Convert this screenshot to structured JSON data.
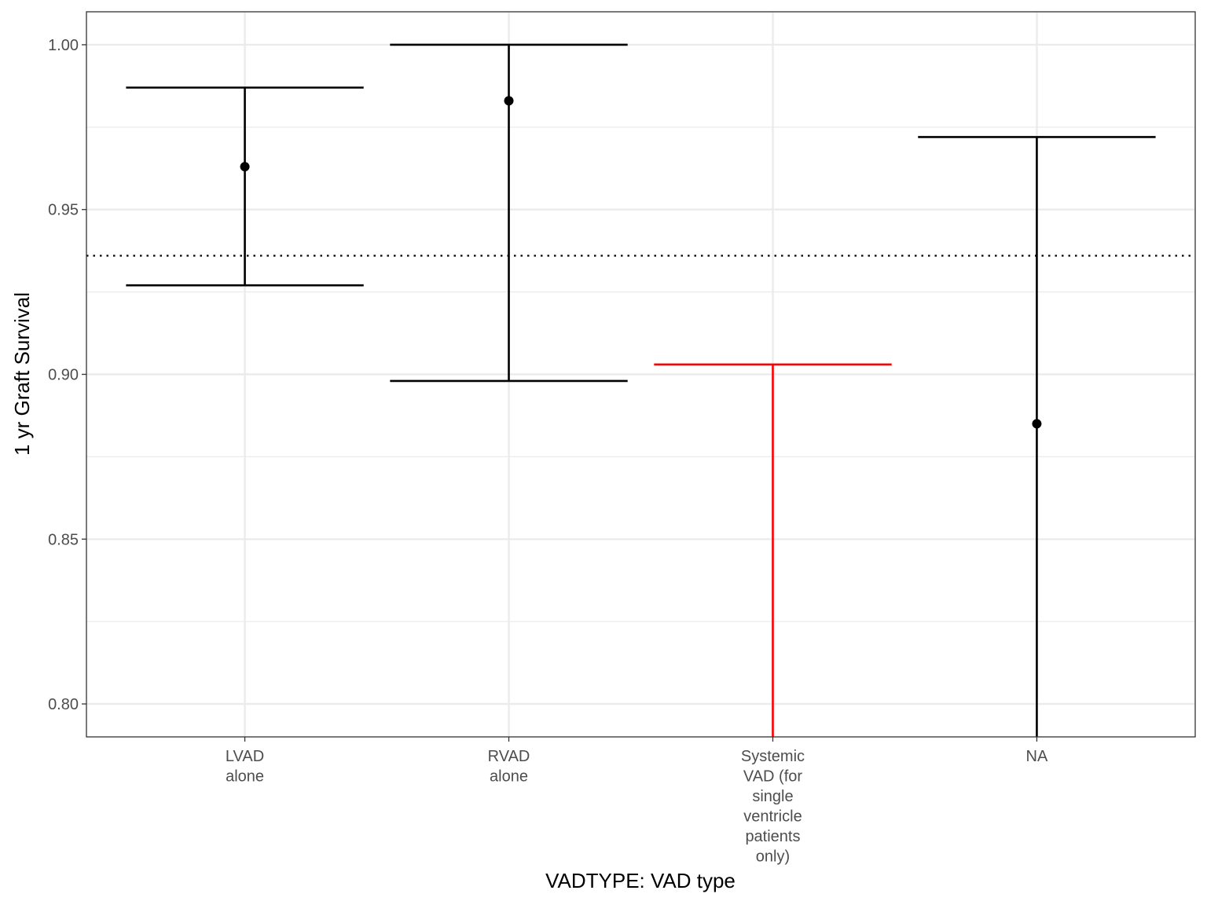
{
  "chart_data": {
    "type": "errorbar",
    "xlabel": "VADTYPE: VAD type",
    "ylabel": "1 yr Graft Survival",
    "ylim": [
      0.79,
      1.01
    ],
    "y_ticks": [
      "0.80",
      "0.85",
      "0.90",
      "0.95",
      "1.00"
    ],
    "y_tick_values": [
      0.8,
      0.85,
      0.9,
      0.95,
      1.0
    ],
    "reference_line": {
      "value": 0.936,
      "style": "dotted"
    },
    "grid": true,
    "categories": [
      {
        "label_lines": [
          "LVAD",
          "alone"
        ],
        "estimate": 0.963,
        "lower": 0.927,
        "upper": 0.987,
        "color": "#000000"
      },
      {
        "label_lines": [
          "RVAD",
          "alone"
        ],
        "estimate": 0.983,
        "lower": 0.898,
        "upper": 1.0,
        "color": "#000000"
      },
      {
        "label_lines": [
          "Systemic",
          "VAD (for",
          "single",
          "ventricle",
          "patients",
          "only)"
        ],
        "estimate": null,
        "lower": 0.77,
        "upper": 0.903,
        "color": "#ff0000"
      },
      {
        "label_lines": [
          "NA"
        ],
        "estimate": 0.885,
        "lower": 0.77,
        "upper": 0.972,
        "color": "#000000"
      }
    ]
  }
}
